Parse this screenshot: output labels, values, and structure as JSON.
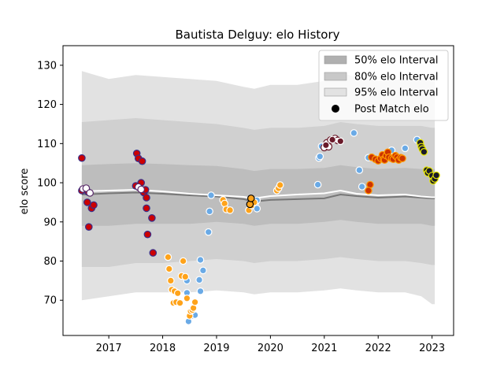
{
  "chart_data": {
    "type": "scatter",
    "title": "Bautista Delguy: elo History",
    "xlabel": "",
    "ylabel": "elo score",
    "xlim": [
      2016.15,
      2023.4
    ],
    "ylim": [
      61,
      135
    ],
    "xticks": [
      "2017",
      "2018",
      "2019",
      "2020",
      "2021",
      "2022",
      "2023"
    ],
    "yticks": [
      "70",
      "80",
      "90",
      "100",
      "110",
      "120",
      "130"
    ],
    "grid": false,
    "legend_position": "top-right",
    "legend": [
      {
        "label": "50% elo Interval",
        "color": "#b0b0b0"
      },
      {
        "label": "80% elo Interval",
        "color": "#c8c8c8"
      },
      {
        "label": "95% elo Interval",
        "color": "#e2e2e2"
      },
      {
        "label": "Post Match elo",
        "color": "#000000"
      }
    ],
    "band_x": [
      2016.5,
      2017.0,
      2017.5,
      2018.0,
      2018.5,
      2019.0,
      2019.5,
      2019.7,
      2020.0,
      2020.5,
      2021.0,
      2021.3,
      2021.6,
      2022.0,
      2022.5,
      2022.8,
      2023.0,
      2023.05
    ],
    "median_y": [
      97.0,
      97.3,
      97.5,
      97.2,
      96.8,
      96.5,
      95.8,
      95.2,
      95.6,
      95.8,
      96.0,
      97.0,
      96.6,
      96.2,
      96.5,
      96.2,
      96.0,
      96.0
    ],
    "mean_y": [
      97.8,
      98.0,
      98.2,
      97.8,
      97.2,
      96.8,
      96.4,
      96.0,
      96.6,
      97.0,
      97.3,
      98.0,
      97.2,
      96.8,
      97.0,
      96.5,
      96.3,
      96.3
    ],
    "band_50": {
      "lower": [
        89.0,
        89.0,
        89.5,
        89.5,
        89.5,
        90.0,
        89.5,
        89.0,
        89.5,
        89.5,
        90.0,
        90.5,
        90.0,
        89.5,
        89.5,
        89.5,
        89.0,
        89.0
      ],
      "upper": [
        104.5,
        104.8,
        105.0,
        104.8,
        104.5,
        104.3,
        103.5,
        103.0,
        103.5,
        103.5,
        103.8,
        104.5,
        104.0,
        103.5,
        103.8,
        103.5,
        103.5,
        103.5
      ]
    },
    "band_80": {
      "lower": [
        78.5,
        78.5,
        79.5,
        79.5,
        80.0,
        80.5,
        80.0,
        79.5,
        80.0,
        80.0,
        80.5,
        81.0,
        80.5,
        80.0,
        80.0,
        79.5,
        79.0,
        79.0
      ],
      "upper": [
        115.5,
        116.0,
        116.5,
        116.0,
        115.5,
        115.0,
        114.0,
        113.5,
        114.0,
        114.0,
        114.5,
        115.5,
        115.0,
        114.5,
        114.5,
        114.5,
        114.0,
        114.0
      ]
    },
    "band_95": {
      "lower": [
        70.0,
        71.0,
        72.0,
        72.0,
        72.0,
        72.5,
        72.0,
        71.5,
        72.0,
        72.0,
        72.5,
        73.0,
        72.5,
        72.0,
        72.0,
        71.0,
        69.0,
        69.0
      ],
      "upper": [
        128.5,
        126.5,
        127.5,
        127.0,
        126.5,
        126.0,
        124.5,
        124.0,
        125.0,
        125.0,
        126.0,
        128.0,
        127.0,
        126.0,
        126.5,
        126.5,
        126.0,
        126.0
      ]
    },
    "series": [
      {
        "fill": "#cc0000",
        "edge": "#3a2f8a",
        "points": [
          [
            2016.5,
            106.3
          ],
          [
            2016.55,
            98.2
          ],
          [
            2016.6,
            95.0
          ],
          [
            2016.63,
            88.7
          ],
          [
            2016.68,
            93.5
          ],
          [
            2016.72,
            94.3
          ],
          [
            2016.5,
            98.0
          ],
          [
            2016.62,
            97.6
          ],
          [
            2017.5,
            99.2
          ],
          [
            2017.52,
            107.5
          ],
          [
            2017.55,
            106.2
          ],
          [
            2017.6,
            100.0
          ],
          [
            2017.62,
            105.5
          ],
          [
            2017.65,
            97.5
          ],
          [
            2017.68,
            98.2
          ],
          [
            2017.7,
            96.2
          ],
          [
            2017.7,
            93.5
          ],
          [
            2017.72,
            86.8
          ],
          [
            2017.8,
            91.0
          ],
          [
            2017.82,
            82.1
          ]
        ]
      },
      {
        "fill": "#ffffff",
        "edge": "#5a2a6a",
        "points": [
          [
            2016.52,
            98.4
          ],
          [
            2016.58,
            98.6
          ],
          [
            2016.65,
            97.4
          ],
          [
            2017.55,
            98.9
          ],
          [
            2017.6,
            98.3
          ]
        ]
      },
      {
        "fill": "#6aaae6",
        "edge": "#ffffff",
        "points": [
          [
            2018.48,
            64.6
          ],
          [
            2018.55,
            66.0
          ],
          [
            2018.6,
            66.2
          ],
          [
            2018.7,
            72.3
          ],
          [
            2018.75,
            77.6
          ],
          [
            2018.7,
            80.3
          ],
          [
            2018.68,
            75.2
          ],
          [
            2018.45,
            71.9
          ],
          [
            2018.45,
            75.0
          ],
          [
            2018.85,
            87.4
          ],
          [
            2018.87,
            92.7
          ],
          [
            2018.9,
            96.8
          ],
          [
            2019.72,
            94.8
          ],
          [
            2019.75,
            93.4
          ],
          [
            2019.75,
            95.5
          ],
          [
            2020.88,
            99.5
          ],
          [
            2020.9,
            106.3
          ],
          [
            2020.92,
            106.7
          ],
          [
            2020.95,
            109.3
          ],
          [
            2021.55,
            112.7
          ],
          [
            2021.65,
            103.2
          ],
          [
            2021.7,
            99.0
          ],
          [
            2021.82,
            106.4
          ],
          [
            2022.25,
            108.3
          ],
          [
            2022.5,
            108.8
          ],
          [
            2022.72,
            111.0
          ]
        ]
      },
      {
        "fill": "#ffa31a",
        "edge": "#ffffff",
        "points": [
          [
            2018.1,
            81.0
          ],
          [
            2018.12,
            78.0
          ],
          [
            2018.15,
            75.0
          ],
          [
            2018.17,
            72.7
          ],
          [
            2018.2,
            69.3
          ],
          [
            2018.22,
            72.3
          ],
          [
            2018.25,
            69.5
          ],
          [
            2018.28,
            71.8
          ],
          [
            2018.32,
            69.3
          ],
          [
            2018.35,
            76.2
          ],
          [
            2018.38,
            80.0
          ],
          [
            2018.42,
            76.0
          ],
          [
            2018.45,
            70.5
          ],
          [
            2018.5,
            66.0
          ],
          [
            2018.52,
            67.2
          ],
          [
            2018.55,
            67.5
          ],
          [
            2018.57,
            68.0
          ],
          [
            2018.6,
            69.5
          ],
          [
            2019.12,
            95.6
          ],
          [
            2019.15,
            94.7
          ],
          [
            2019.18,
            93.2
          ],
          [
            2019.25,
            93.0
          ],
          [
            2019.6,
            93.0
          ],
          [
            2019.65,
            94.2
          ],
          [
            2019.7,
            95.0
          ],
          [
            2020.12,
            98.0
          ],
          [
            2020.15,
            98.6
          ],
          [
            2020.18,
            99.4
          ]
        ]
      },
      {
        "fill": "#ffa31a",
        "edge": "#000000",
        "points": [
          [
            2019.62,
            94.5
          ],
          [
            2019.64,
            96.0
          ]
        ]
      },
      {
        "fill": "#ffffff",
        "edge": "#6a1a2a",
        "points": [
          [
            2021.0,
            109.0
          ],
          [
            2021.05,
            110.2
          ],
          [
            2021.08,
            109.2
          ],
          [
            2021.12,
            110.9
          ],
          [
            2021.2,
            111.3
          ],
          [
            2021.25,
            110.8
          ]
        ]
      },
      {
        "fill": "#6a1a2a",
        "edge": "#ffffff",
        "points": [
          [
            2021.03,
            109.6
          ],
          [
            2021.15,
            111.0
          ],
          [
            2021.3,
            110.6
          ]
        ]
      },
      {
        "fill": "#cc3300",
        "edge": "#ff9900",
        "points": [
          [
            2021.85,
            99.5
          ],
          [
            2021.82,
            98.0
          ],
          [
            2021.88,
            106.5
          ],
          [
            2021.95,
            106.0
          ],
          [
            2022.0,
            105.6
          ],
          [
            2022.05,
            106.2
          ],
          [
            2022.08,
            107.1
          ],
          [
            2022.1,
            106.0
          ],
          [
            2022.12,
            105.8
          ],
          [
            2022.15,
            106.9
          ],
          [
            2022.18,
            107.8
          ],
          [
            2022.2,
            106.5
          ],
          [
            2022.25,
            106.2
          ],
          [
            2022.28,
            106.0
          ],
          [
            2022.32,
            106.9
          ],
          [
            2022.35,
            106.5
          ],
          [
            2022.38,
            105.8
          ],
          [
            2022.42,
            106.4
          ],
          [
            2022.45,
            106.2
          ]
        ]
      },
      {
        "fill": "#1a1a2a",
        "edge": "#e6e600",
        "points": [
          [
            2022.78,
            110.2
          ],
          [
            2022.8,
            109.2
          ],
          [
            2022.82,
            108.6
          ],
          [
            2022.85,
            107.9
          ],
          [
            2022.9,
            103.2
          ],
          [
            2022.92,
            102.5
          ],
          [
            2022.95,
            103.0
          ],
          [
            2023.0,
            101.8
          ],
          [
            2023.02,
            100.5
          ],
          [
            2023.05,
            101.0
          ],
          [
            2023.08,
            101.9
          ]
        ]
      }
    ]
  }
}
